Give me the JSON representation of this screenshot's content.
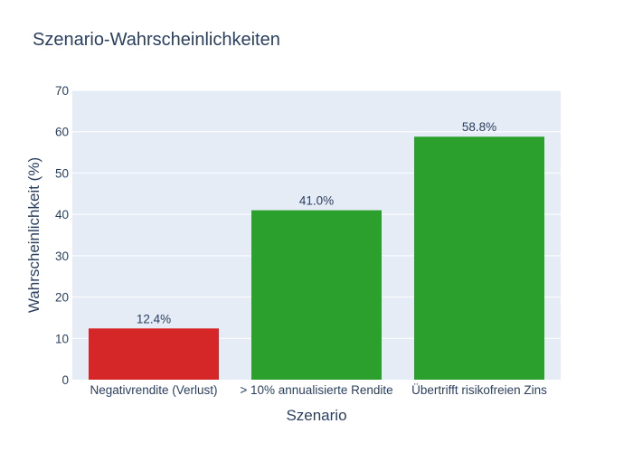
{
  "chart_data": {
    "type": "bar",
    "title": "Szenario-Wahrscheinlichkeiten",
    "xlabel": "Szenario",
    "ylabel": "Wahrscheinlichkeit (%)",
    "categories": [
      "Negativrendite (Verlust)",
      "> 10% annualisierte Rendite",
      "Übertrifft risikofreien Zins"
    ],
    "values": [
      12.4,
      41.0,
      58.8
    ],
    "data_labels": [
      "12.4%",
      "41.0%",
      "58.8%"
    ],
    "bar_colors": [
      "#d62728",
      "#2ca02c",
      "#2ca02c"
    ],
    "ylim": [
      0,
      70
    ],
    "yticks": [
      0,
      10,
      20,
      30,
      40,
      50,
      60,
      70
    ],
    "grid": true,
    "plot_background": "#e5ecf6"
  }
}
